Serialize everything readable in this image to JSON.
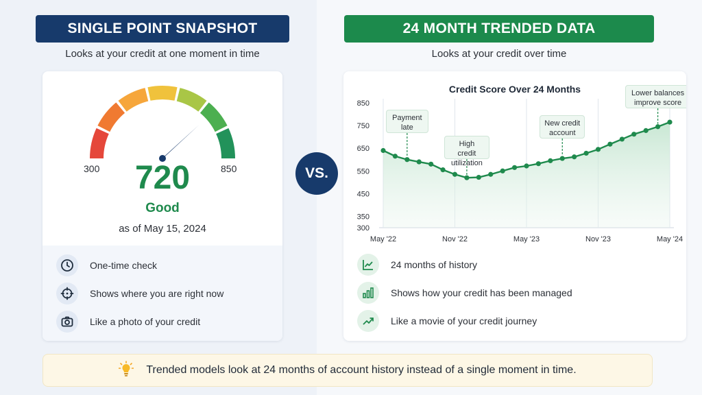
{
  "left": {
    "banner": "SINGLE POINT SNAPSHOT",
    "subtitle": "Looks at your credit at one moment in time",
    "gauge": {
      "min": "300",
      "max": "850",
      "score": "720",
      "rating": "Good",
      "date": "as of May 15, 2024",
      "segment_colors": [
        "#e5473a",
        "#f07a31",
        "#f6a63b",
        "#f0c23c",
        "#a9c646",
        "#4caf50",
        "#22925a"
      ],
      "needle_color": "#173a6b"
    },
    "features": [
      {
        "icon": "clock-icon",
        "text": "One-time check"
      },
      {
        "icon": "crosshair-icon",
        "text": "Shows where you are right now"
      },
      {
        "icon": "camera-icon",
        "text": "Like a photo of your credit"
      }
    ]
  },
  "vs_label": "VS.",
  "right": {
    "banner": "24 MONTH TRENDED DATA",
    "subtitle": "Looks at your credit over time",
    "features": [
      {
        "icon": "line-chart-icon",
        "text": "24 months of history"
      },
      {
        "icon": "bar-chart-icon",
        "text": "Shows how your credit has been managed"
      },
      {
        "icon": "trend-up-icon",
        "text": "Like a movie of your credit journey"
      }
    ]
  },
  "chart_data": {
    "type": "line",
    "title": "Credit Score Over 24 Months",
    "ylim": [
      300,
      850
    ],
    "yticks": [
      850,
      750,
      650,
      550,
      450,
      350,
      300
    ],
    "xticks": [
      {
        "label": "May '22",
        "index": 0
      },
      {
        "label": "Nov '22",
        "index": 6
      },
      {
        "label": "May '23",
        "index": 12
      },
      {
        "label": "Nov '23",
        "index": 18
      },
      {
        "label": "May '24",
        "index": 24
      }
    ],
    "values": [
      640,
      615,
      600,
      590,
      580,
      555,
      535,
      520,
      522,
      535,
      550,
      565,
      572,
      582,
      595,
      605,
      612,
      628,
      645,
      668,
      690,
      712,
      728,
      745,
      765
    ],
    "line_color": "#1f8a4d",
    "annotations": [
      {
        "text": "Payment late",
        "index": 2
      },
      {
        "text": "High credit utilization",
        "index": 7
      },
      {
        "text": "New credit account",
        "index": 15
      },
      {
        "text": "Lower balances improve score",
        "index": 23
      }
    ]
  },
  "footer": {
    "icon": "lightbulb-icon",
    "text": "Trended models look at 24 months of account history instead of a single moment in time."
  }
}
